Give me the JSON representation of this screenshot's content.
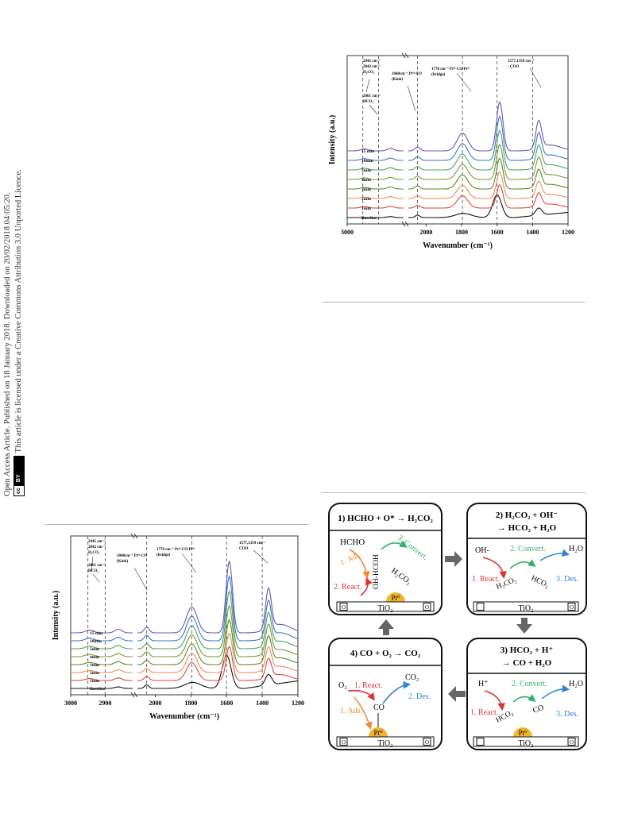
{
  "sidebar": {
    "line1": "Open Access Article. Published on 18 January 2018. Downloaded on 20/02/2018 04:05:20.",
    "line2": "This article is licensed under a Creative Commons Attribution 3.0 Unported Licence.",
    "badge_cc": "cc",
    "badge_by": "BY"
  },
  "colors": [
    "#111111",
    "#e04836",
    "#f28a5a",
    "#5a8a2c",
    "#7a9a3a",
    "#48a858",
    "#3a78c8",
    "#6a58b8",
    "#9058b8"
  ],
  "chart_data": [
    {
      "type": "line",
      "xlabel": "Wavenumber (cm⁻¹)",
      "ylabel": "Intensity (a.u.)",
      "xticks": [
        "3000",
        "2000",
        "1800",
        "1600",
        "1400",
        "1200"
      ],
      "series": [
        "Baseline",
        "1min",
        "2min",
        "3min",
        "4min",
        "5min",
        "10min",
        "15 min"
      ],
      "annotations": [
        {
          "l1": "2945 cm⁻¹",
          "l2": "2842 cm⁻¹",
          "l3": "H₂CO₂"
        },
        {
          "l1": "2861 cm⁻¹",
          "l2": "HCO₂"
        },
        {
          "l1": "2048cm⁻¹ Pt⁰-CO",
          "l2": "(Kink)"
        },
        {
          "l1": "1770 cm⁻¹ Pt⁰-CO-Pt⁰",
          "l2": "(bridge)"
        },
        {
          "l1": "1577,1359 cm⁻¹",
          "l2": "- COO"
        }
      ]
    },
    {
      "type": "line",
      "xlabel": "Wavenumber (cm⁻¹)",
      "ylabel": "Intensity (a.u.)",
      "xticks": [
        "3000",
        "2900",
        "2000",
        "1800",
        "1600",
        "1400",
        "1200"
      ],
      "series": [
        "Baseline",
        "1min",
        "2min",
        "3min",
        "4min",
        "5min",
        "10min",
        "15 min"
      ],
      "annotations": [
        {
          "l1": "2945 cm⁻¹",
          "l2": "2842 cm⁻¹",
          "l3": "H₂CO₂"
        },
        {
          "l1": "2861 cm⁻¹",
          "l2": "HCO₂"
        },
        {
          "l1": "2048cm⁻¹ Pt⁰-CO",
          "l2": "(Kink)"
        },
        {
          "l1": "1770 cm⁻¹ Pt⁰-CO-Pt⁰",
          "l2": "(bridge)"
        },
        {
          "l1": "1577,1359 cm⁻¹",
          "l2": "COO"
        }
      ]
    }
  ],
  "scheme": {
    "step1": {
      "title": "1) HCHO + O* → H₂CO₂",
      "hcho": "HCHO",
      "convert": "3. Convert.",
      "ads": "1. Ads.",
      "react": "2. React.",
      "ohhcoh": "OH-HCOH",
      "h2co2": "H₂CO₂",
      "pt": "Pt⁰",
      "tio2": "TiO₂",
      "o": "O"
    },
    "step2": {
      "title1": "2) H₂CO₂ + OH⁻",
      "title2": "→ HCO₂ + H₂O",
      "oh": "OH-",
      "convert": "2. Convert.",
      "h2o": "H₂O",
      "react": "1. React.",
      "h2co2": "H₂CO₂",
      "hco2": "HCO₂",
      "des": "3. Des.",
      "tio2": "TiO₂",
      "o": "O"
    },
    "step3": {
      "title1": "3) HCO₂ + H⁺",
      "title2": "→ CO + H₂O",
      "h": "H⁺",
      "convert": "2. Convert.",
      "h2o": "H₂O",
      "react": "1. React.",
      "hco2": "HCO₂",
      "co": "CO",
      "des": "3. Des.",
      "pt": "Pt⁰",
      "tio2": "TiO₂",
      "o": "O"
    },
    "step4": {
      "title": "4) CO + O₂ → CO₂",
      "o2": "O₂",
      "react": "1. React.",
      "co2": "CO₂",
      "des": "2. Des.",
      "ads": "1. Ads.",
      "co": "CO",
      "pt": "Pt⁰",
      "tio2": "TiO₂",
      "o": "O"
    }
  }
}
